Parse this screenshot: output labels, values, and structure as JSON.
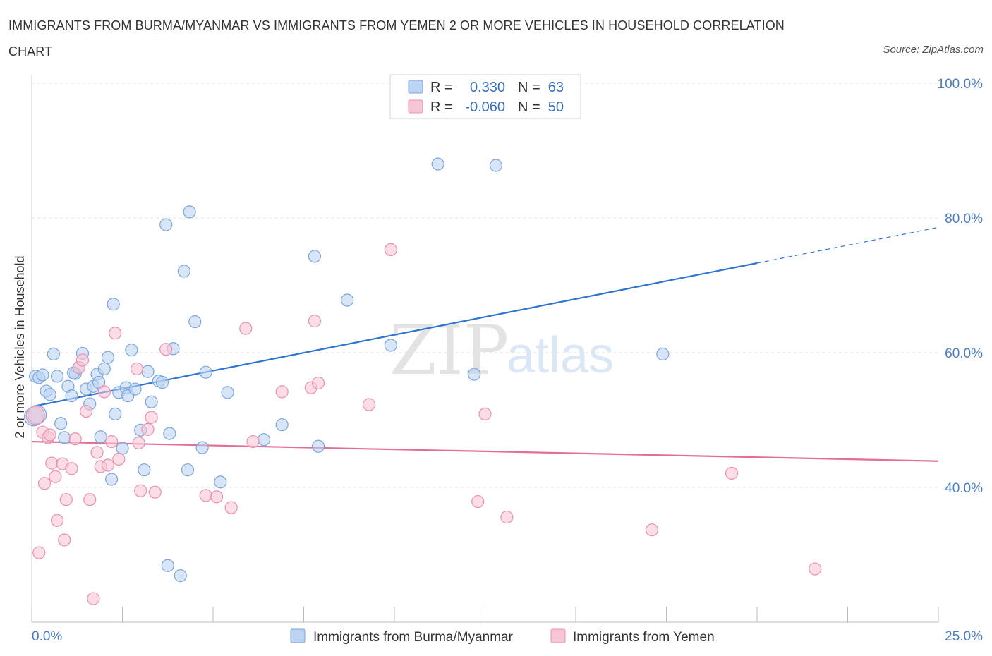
{
  "title": "IMMIGRANTS FROM BURMA/MYANMAR VS IMMIGRANTS FROM YEMEN 2 OR MORE VEHICLES IN HOUSEHOLD CORRELATION CHART",
  "source": "Source: ZipAtlas.com",
  "watermark": {
    "zip": "ZIP",
    "atlas": "atlas"
  },
  "colors": {
    "blue_fill": "#bcd4f2",
    "blue_stroke": "#7aa6dd",
    "blue_line": "#2f74d0",
    "pink_fill": "#f7c6d6",
    "pink_stroke": "#ec8fb0",
    "pink_line": "#e36d98",
    "grid": "#e2e2e2",
    "axis_text": "#4a7cc7"
  },
  "legend": {
    "rows": [
      {
        "r_label": "R =",
        "r_value": "0.330",
        "n_label": "N =",
        "n_value": "63"
      },
      {
        "r_label": "R =",
        "r_value": "-0.060",
        "n_label": "N =",
        "n_value": "50"
      }
    ]
  },
  "chart_data": {
    "type": "scatter",
    "xlabel": "",
    "ylabel": "2 or more Vehicles in Household",
    "xlim": [
      0,
      25
    ],
    "ylim": [
      20,
      100
    ],
    "x_tick_labels": [
      "0.0%",
      "25.0%"
    ],
    "y_ticks": [
      40,
      60,
      80,
      100
    ],
    "y_tick_labels": [
      "40.0%",
      "60.0%",
      "80.0%",
      "100.0%"
    ],
    "grid": true,
    "legend_position": "top-center",
    "series": [
      {
        "name": "Immigrants from Burma/Myanmar",
        "color": "#bcd4f2",
        "trend": {
          "x": [
            0,
            20
          ],
          "y": [
            52.0,
            73.3
          ],
          "dashed_to": [
            25,
            78.6
          ]
        },
        "points": [
          [
            0.1,
            56.5
          ],
          [
            0.2,
            56.3
          ],
          [
            0.3,
            56.7
          ],
          [
            0.4,
            54.3
          ],
          [
            0.5,
            53.8
          ],
          [
            0.6,
            59.8
          ],
          [
            0.7,
            56.5
          ],
          [
            0.8,
            49.5
          ],
          [
            0.9,
            47.4
          ],
          [
            1.0,
            55.0
          ],
          [
            1.1,
            53.6
          ],
          [
            1.2,
            56.9
          ],
          [
            1.3,
            57.8
          ],
          [
            1.4,
            59.9
          ],
          [
            1.5,
            54.6
          ],
          [
            1.6,
            52.4
          ],
          [
            1.7,
            55.0
          ],
          [
            1.8,
            56.8
          ],
          [
            1.85,
            55.6
          ],
          [
            1.9,
            47.5
          ],
          [
            2.0,
            57.6
          ],
          [
            2.1,
            59.3
          ],
          [
            2.2,
            41.2
          ],
          [
            2.25,
            67.2
          ],
          [
            2.3,
            50.9
          ],
          [
            2.4,
            54.1
          ],
          [
            2.5,
            45.8
          ],
          [
            2.6,
            54.8
          ],
          [
            2.65,
            53.6
          ],
          [
            2.75,
            60.4
          ],
          [
            2.85,
            54.6
          ],
          [
            3.0,
            48.5
          ],
          [
            3.1,
            42.6
          ],
          [
            3.2,
            57.2
          ],
          [
            3.3,
            52.7
          ],
          [
            3.5,
            55.8
          ],
          [
            3.6,
            55.6
          ],
          [
            3.7,
            79.0
          ],
          [
            3.8,
            48.0
          ],
          [
            3.9,
            60.6
          ],
          [
            3.75,
            28.4
          ],
          [
            4.1,
            26.9
          ],
          [
            4.2,
            72.1
          ],
          [
            4.3,
            42.6
          ],
          [
            4.35,
            80.9
          ],
          [
            4.5,
            64.6
          ],
          [
            4.7,
            45.9
          ],
          [
            4.8,
            57.1
          ],
          [
            5.2,
            40.8
          ],
          [
            5.4,
            54.1
          ],
          [
            6.4,
            47.1
          ],
          [
            6.9,
            49.3
          ],
          [
            7.8,
            74.3
          ],
          [
            7.9,
            46.1
          ],
          [
            8.7,
            67.8
          ],
          [
            9.9,
            61.1
          ],
          [
            11.2,
            88.0
          ],
          [
            12.2,
            56.8
          ],
          [
            12.8,
            87.8
          ],
          [
            17.4,
            59.8
          ],
          [
            0.05,
            50.5
          ],
          [
            0.15,
            50.8
          ],
          [
            1.15,
            57.0
          ]
        ]
      },
      {
        "name": "Immigrants from Yemen",
        "color": "#f7c6d6",
        "trend": {
          "x": [
            0,
            25
          ],
          "y": [
            46.8,
            43.9
          ]
        },
        "points": [
          [
            0.1,
            50.7
          ],
          [
            0.2,
            30.3
          ],
          [
            0.3,
            48.2
          ],
          [
            0.35,
            40.6
          ],
          [
            0.45,
            47.4
          ],
          [
            0.5,
            47.8
          ],
          [
            0.55,
            43.6
          ],
          [
            0.65,
            41.6
          ],
          [
            0.7,
            35.1
          ],
          [
            0.85,
            43.5
          ],
          [
            0.9,
            32.2
          ],
          [
            0.95,
            38.2
          ],
          [
            1.1,
            42.8
          ],
          [
            1.2,
            47.2
          ],
          [
            1.3,
            57.8
          ],
          [
            1.4,
            58.9
          ],
          [
            1.5,
            51.3
          ],
          [
            1.6,
            38.2
          ],
          [
            1.7,
            23.5
          ],
          [
            1.8,
            45.2
          ],
          [
            1.9,
            43.1
          ],
          [
            2.0,
            54.2
          ],
          [
            2.1,
            43.3
          ],
          [
            2.2,
            46.8
          ],
          [
            2.3,
            62.9
          ],
          [
            2.4,
            44.2
          ],
          [
            2.9,
            57.6
          ],
          [
            2.95,
            46.6
          ],
          [
            3.0,
            39.5
          ],
          [
            3.2,
            48.6
          ],
          [
            3.3,
            50.4
          ],
          [
            3.4,
            39.3
          ],
          [
            3.7,
            60.5
          ],
          [
            4.8,
            38.8
          ],
          [
            5.1,
            38.6
          ],
          [
            5.5,
            37.0
          ],
          [
            5.9,
            63.6
          ],
          [
            6.1,
            46.8
          ],
          [
            6.9,
            54.2
          ],
          [
            7.7,
            54.8
          ],
          [
            7.8,
            64.7
          ],
          [
            7.9,
            55.5
          ],
          [
            9.3,
            52.3
          ],
          [
            9.9,
            75.3
          ],
          [
            12.3,
            37.9
          ],
          [
            12.5,
            50.9
          ],
          [
            13.1,
            35.6
          ],
          [
            17.1,
            33.7
          ],
          [
            19.3,
            42.1
          ],
          [
            21.6,
            27.9
          ]
        ]
      }
    ]
  }
}
